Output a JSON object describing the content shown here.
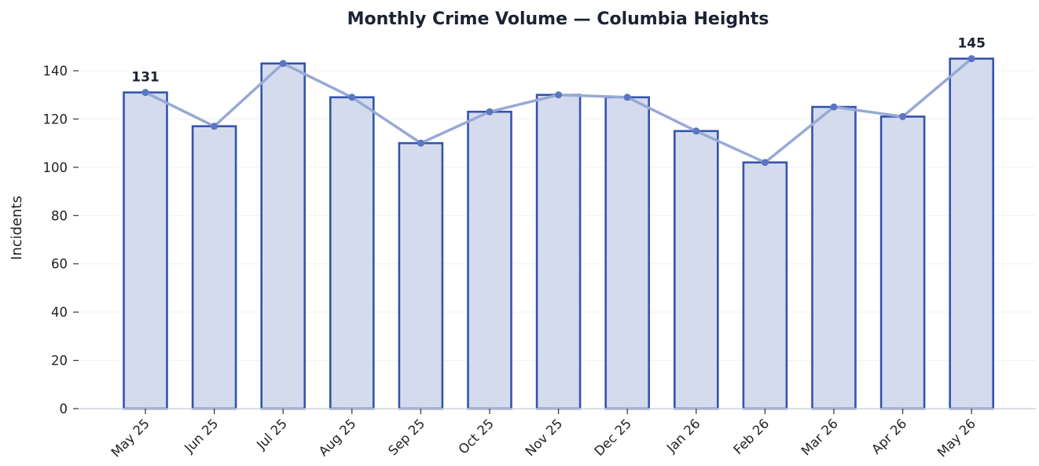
{
  "chart_data": {
    "type": "bar",
    "title": "Monthly Crime Volume — Columbia Heights",
    "xlabel": "",
    "ylabel": "Incidents",
    "categories": [
      "May 25",
      "Jun 25",
      "Jul 25",
      "Aug 25",
      "Sep 25",
      "Oct 25",
      "Nov 25",
      "Dec 25",
      "Jan 26",
      "Feb 26",
      "Mar 26",
      "Apr 26",
      "May 26"
    ],
    "values": [
      131,
      117,
      143,
      129,
      110,
      123,
      130,
      129,
      115,
      102,
      125,
      121,
      145
    ],
    "overlay": "line",
    "ylim": [
      0,
      150
    ],
    "yticks": [
      0,
      20,
      40,
      60,
      80,
      100,
      120,
      140
    ],
    "grid": "horizontal",
    "annotations": [
      {
        "category": "May 25",
        "text": "131"
      },
      {
        "category": "May 26",
        "text": "145"
      }
    ],
    "colors": {
      "bar_fill": "#d3dbed",
      "bar_edge": "#3454ab",
      "line": "#98a9d6",
      "marker": "#5a75c3",
      "grid": "#eef0f4",
      "axis": "#cfd3dc"
    }
  }
}
